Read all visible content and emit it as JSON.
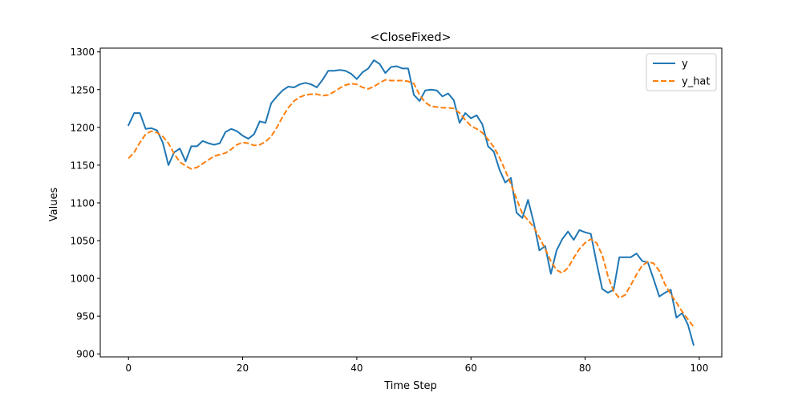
{
  "chart_data": {
    "type": "line",
    "title": "<CloseFixed>",
    "xlabel": "Time Step",
    "ylabel": "Values",
    "xlim": [
      -4.95,
      103.95
    ],
    "ylim": [
      896,
      1305
    ],
    "xticks": [
      0,
      20,
      40,
      60,
      80,
      100
    ],
    "yticks": [
      900,
      950,
      1000,
      1050,
      1100,
      1150,
      1200,
      1250,
      1300
    ],
    "grid": false,
    "legend_position": "top-right",
    "series": [
      {
        "name": "y",
        "color": "#1f77b4",
        "dash": "solid",
        "x": [
          0,
          1,
          2,
          3,
          4,
          5,
          6,
          7,
          8,
          9,
          10,
          11,
          12,
          13,
          14,
          15,
          16,
          17,
          18,
          19,
          20,
          21,
          22,
          23,
          24,
          25,
          26,
          27,
          28,
          29,
          30,
          31,
          32,
          33,
          34,
          35,
          36,
          37,
          38,
          39,
          40,
          41,
          42,
          43,
          44,
          45,
          46,
          47,
          48,
          49,
          50,
          51,
          52,
          53,
          54,
          55,
          56,
          57,
          58,
          59,
          60,
          61,
          62,
          63,
          64,
          65,
          66,
          67,
          68,
          69,
          70,
          71,
          72,
          73,
          74,
          75,
          76,
          77,
          78,
          79,
          80,
          81,
          82,
          83,
          84,
          85,
          86,
          87,
          88,
          89,
          90,
          91,
          92,
          93,
          94,
          95,
          96,
          97,
          98,
          99
        ],
        "values": [
          1203,
          1219,
          1219,
          1198,
          1199,
          1196,
          1180,
          1150,
          1167,
          1172,
          1155,
          1175,
          1175,
          1182,
          1179,
          1177,
          1179,
          1194,
          1198,
          1195,
          1189,
          1185,
          1191,
          1208,
          1206,
          1232,
          1241,
          1249,
          1254,
          1253,
          1257,
          1259,
          1257,
          1253,
          1263,
          1275,
          1275,
          1276,
          1275,
          1271,
          1264,
          1273,
          1278,
          1289,
          1284,
          1272,
          1280,
          1281,
          1278,
          1278,
          1243,
          1235,
          1249,
          1250,
          1249,
          1241,
          1245,
          1236,
          1206,
          1219,
          1212,
          1216,
          1204,
          1175,
          1168,
          1144,
          1127,
          1133,
          1087,
          1080,
          1104,
          1074,
          1037,
          1043,
          1006,
          1037,
          1052,
          1062,
          1051,
          1064,
          1061,
          1059,
          1021,
          986,
          981,
          985,
          1028,
          1028,
          1028,
          1033,
          1023,
          1021,
          999,
          976,
          981,
          985,
          948,
          954,
          939,
          912
        ]
      },
      {
        "name": "y_hat",
        "color": "#ff7f0e",
        "dash": "dashed",
        "x": [
          0,
          1,
          2,
          3,
          4,
          5,
          6,
          7,
          8,
          9,
          10,
          11,
          12,
          13,
          14,
          15,
          16,
          17,
          18,
          19,
          20,
          21,
          22,
          23,
          24,
          25,
          26,
          27,
          28,
          29,
          30,
          31,
          32,
          33,
          34,
          35,
          36,
          37,
          38,
          39,
          40,
          41,
          42,
          43,
          44,
          45,
          46,
          47,
          48,
          49,
          50,
          51,
          52,
          53,
          54,
          55,
          56,
          57,
          58,
          59,
          60,
          61,
          62,
          63,
          64,
          65,
          66,
          67,
          68,
          69,
          70,
          71,
          72,
          73,
          74,
          75,
          76,
          77,
          78,
          79,
          80,
          81,
          82,
          83,
          84,
          85,
          86,
          87,
          88,
          89,
          90,
          91,
          92,
          93,
          94,
          95,
          96,
          97,
          98,
          99
        ],
        "values": [
          1159,
          1167,
          1180,
          1191,
          1195,
          1193,
          1188,
          1179,
          1165,
          1154,
          1149,
          1145,
          1147,
          1152,
          1157,
          1162,
          1164,
          1166,
          1171,
          1177,
          1180,
          1179,
          1176,
          1177,
          1181,
          1188,
          1200,
          1214,
          1226,
          1235,
          1240,
          1243,
          1244,
          1244,
          1242,
          1243,
          1247,
          1252,
          1256,
          1258,
          1257,
          1253,
          1251,
          1254,
          1259,
          1263,
          1262,
          1262,
          1262,
          1261,
          1258,
          1243,
          1233,
          1228,
          1227,
          1226,
          1226,
          1225,
          1219,
          1210,
          1202,
          1198,
          1193,
          1184,
          1174,
          1160,
          1143,
          1125,
          1105,
          1086,
          1077,
          1068,
          1054,
          1039,
          1023,
          1011,
          1007,
          1014,
          1027,
          1039,
          1047,
          1052,
          1047,
          1031,
          1003,
          983,
          974,
          978,
          991,
          1005,
          1017,
          1022,
          1020,
          1010,
          992,
          979,
          968,
          956,
          946,
          936
        ]
      }
    ]
  }
}
